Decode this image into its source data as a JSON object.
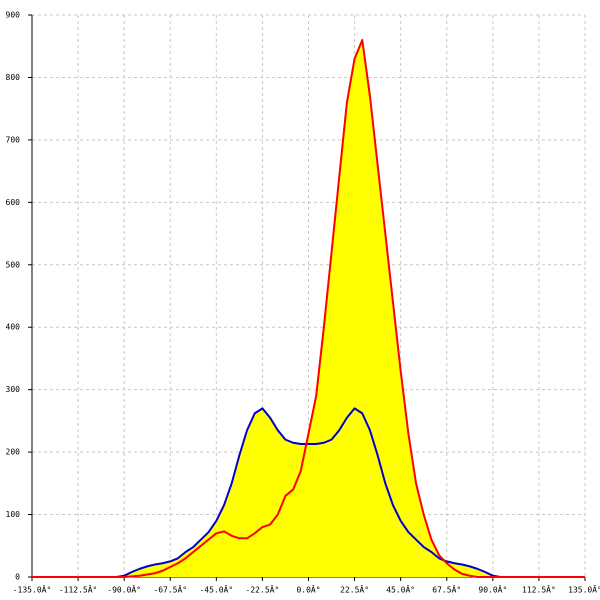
{
  "chart_data": {
    "type": "area",
    "x": [
      -135,
      -97.5,
      -93.75,
      -90,
      -86.25,
      -82.5,
      -78.75,
      -75,
      -71.25,
      -67.5,
      -63.75,
      -60,
      -56.25,
      -52.5,
      -48.75,
      -45,
      -41.25,
      -37.5,
      -33.75,
      -30,
      -26.25,
      -22.5,
      -18.75,
      -15,
      -11.25,
      -7.5,
      -3.75,
      0,
      3.75,
      7.5,
      11.25,
      15,
      18.75,
      22.5,
      26.25,
      30,
      33.75,
      37.5,
      41.25,
      45,
      48.75,
      52.5,
      56.25,
      60,
      63.75,
      67.5,
      71.25,
      75,
      78.75,
      82.5,
      86.25,
      90,
      93.75,
      97.5,
      135
    ],
    "series": [
      {
        "color": "#ff0000",
        "fill": "#ffff00",
        "values": [
          0,
          0,
          0,
          0,
          1,
          2,
          4,
          6,
          10,
          16,
          22,
          30,
          40,
          50,
          60,
          70,
          73,
          66,
          62,
          62,
          70,
          80,
          84,
          100,
          130,
          140,
          170,
          230,
          290,
          400,
          520,
          640,
          760,
          830,
          860,
          770,
          660,
          550,
          440,
          330,
          230,
          150,
          100,
          60,
          35,
          22,
          12,
          5,
          2,
          0,
          0,
          0,
          0,
          0,
          0
        ]
      },
      {
        "color": "#0000cc",
        "fill": "#ffff00",
        "values": [
          0,
          0,
          0,
          2,
          8,
          13,
          17,
          20,
          22,
          25,
          30,
          40,
          48,
          60,
          72,
          90,
          115,
          150,
          195,
          235,
          262,
          270,
          255,
          235,
          220,
          215,
          213,
          213,
          213,
          215,
          220,
          235,
          255,
          270,
          262,
          235,
          195,
          150,
          115,
          90,
          72,
          60,
          48,
          40,
          30,
          25,
          22,
          20,
          17,
          13,
          8,
          2,
          0,
          0,
          0
        ]
      }
    ],
    "xlim": [
      -135,
      135
    ],
    "xticks": [
      {
        "value": -135,
        "label": "-135.0Â°"
      },
      {
        "value": -112.5,
        "label": "-112.5Â°"
      },
      {
        "value": -90,
        "label": "-90.0Â°"
      },
      {
        "value": -67.5,
        "label": "-67.5Â°"
      },
      {
        "value": -45,
        "label": "-45.0Â°"
      },
      {
        "value": -22.5,
        "label": "-22.5Â°"
      },
      {
        "value": 0,
        "label": "0.0Â°"
      },
      {
        "value": 22.5,
        "label": "22.5Â°"
      },
      {
        "value": 45,
        "label": "45.0Â°"
      },
      {
        "value": 67.5,
        "label": "67.5Â°"
      },
      {
        "value": 90,
        "label": "90.0Â°"
      },
      {
        "value": 112.5,
        "label": "112.5Â°"
      },
      {
        "value": 135,
        "label": "135.0Â°"
      }
    ],
    "ylim": [
      0,
      900
    ],
    "yticks": [
      0,
      100,
      200,
      300,
      400,
      500,
      600,
      700,
      800,
      900
    ],
    "grid": true
  }
}
